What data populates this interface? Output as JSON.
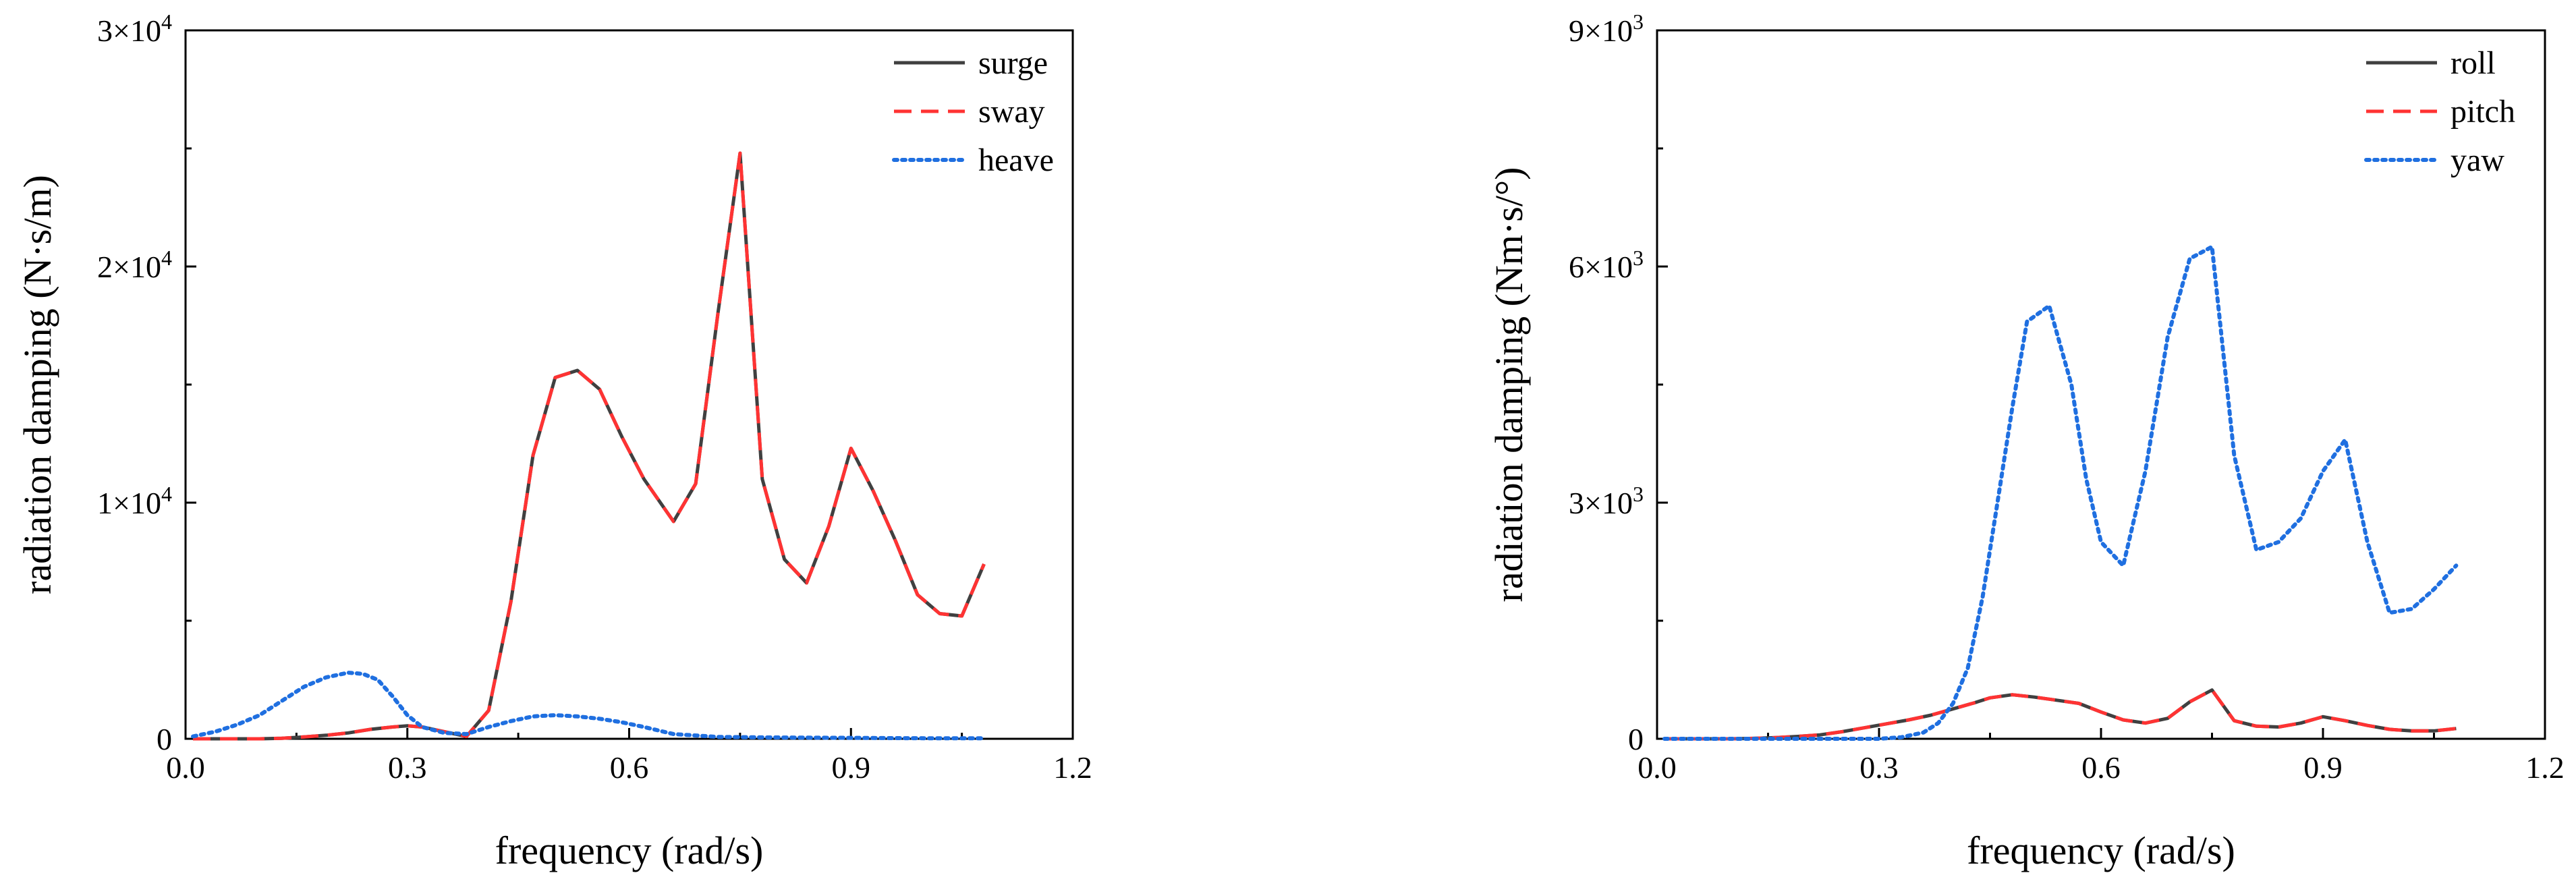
{
  "figure": "radiation damping vs frequency",
  "chart_data": [
    {
      "type": "line",
      "title": "",
      "xlabel": "frequency (rad/s)",
      "ylabel": "radiation damping (N·s/m)",
      "xlim": [
        0,
        1.2
      ],
      "ylim": [
        0,
        30000
      ],
      "xticks": [
        0,
        0.3,
        0.6,
        0.9,
        1.2
      ],
      "xtick_labels": [
        "0.0",
        "0.3",
        "0.6",
        "0.9",
        "1.2"
      ],
      "yticks": [
        0,
        10000,
        20000,
        30000
      ],
      "ytick_labels": [
        {
          "base": "0",
          "exp": ""
        },
        {
          "base": "1×10",
          "exp": "4"
        },
        {
          "base": "2×10",
          "exp": "4"
        },
        {
          "base": "3×10",
          "exp": "4"
        }
      ],
      "legend_position": "top-right",
      "series": [
        {
          "name": "surge",
          "color": "#404040",
          "style": "solid",
          "x": [
            0.01,
            0.04,
            0.07,
            0.1,
            0.13,
            0.16,
            0.19,
            0.22,
            0.25,
            0.28,
            0.3,
            0.32,
            0.35,
            0.38,
            0.41,
            0.44,
            0.47,
            0.5,
            0.53,
            0.56,
            0.59,
            0.62,
            0.66,
            0.69,
            0.72,
            0.75,
            0.78,
            0.81,
            0.84,
            0.87,
            0.9,
            0.93,
            0.96,
            0.99,
            1.02,
            1.05,
            1.08
          ],
          "values": [
            0,
            0,
            0,
            0,
            20,
            80,
            150,
            250,
            400,
            500,
            550,
            500,
            300,
            100,
            1200,
            5800,
            12000,
            15300,
            15600,
            14800,
            12800,
            11000,
            9200,
            10800,
            18000,
            24800,
            11000,
            7600,
            6600,
            9000,
            12300,
            10500,
            8400,
            6100,
            5300,
            5200,
            7400
          ]
        },
        {
          "name": "sway",
          "color": "#ff3333",
          "style": "dashed",
          "x": [
            0.01,
            0.04,
            0.07,
            0.1,
            0.13,
            0.16,
            0.19,
            0.22,
            0.25,
            0.28,
            0.3,
            0.32,
            0.35,
            0.38,
            0.41,
            0.44,
            0.47,
            0.5,
            0.53,
            0.56,
            0.59,
            0.62,
            0.66,
            0.69,
            0.72,
            0.75,
            0.78,
            0.81,
            0.84,
            0.87,
            0.9,
            0.93,
            0.96,
            0.99,
            1.02,
            1.05,
            1.08
          ],
          "values": [
            0,
            0,
            0,
            0,
            20,
            80,
            150,
            250,
            400,
            500,
            550,
            500,
            300,
            100,
            1200,
            5800,
            12000,
            15300,
            15600,
            14800,
            12800,
            11000,
            9200,
            10800,
            18000,
            24800,
            11000,
            7600,
            6600,
            9000,
            12300,
            10500,
            8400,
            6100,
            5300,
            5200,
            7400
          ]
        },
        {
          "name": "heave",
          "color": "#1f6fe0",
          "style": "dotted",
          "x": [
            0.01,
            0.04,
            0.07,
            0.1,
            0.13,
            0.16,
            0.19,
            0.22,
            0.24,
            0.26,
            0.28,
            0.3,
            0.32,
            0.35,
            0.38,
            0.41,
            0.44,
            0.47,
            0.5,
            0.53,
            0.56,
            0.59,
            0.62,
            0.66,
            0.72,
            0.78,
            0.84,
            0.9,
            0.96,
            1.02,
            1.08
          ],
          "values": [
            100,
            300,
            600,
            1000,
            1600,
            2200,
            2600,
            2800,
            2750,
            2500,
            1800,
            1000,
            500,
            250,
            200,
            500,
            750,
            950,
            1000,
            950,
            850,
            700,
            500,
            200,
            80,
            60,
            50,
            40,
            30,
            20,
            20
          ]
        }
      ]
    },
    {
      "type": "line",
      "title": "",
      "xlabel": "frequency (rad/s)",
      "ylabel": "radiation damping (Nm·s/°)",
      "xlim": [
        0,
        1.2
      ],
      "ylim": [
        0,
        9000
      ],
      "xticks": [
        0,
        0.3,
        0.6,
        0.9,
        1.2
      ],
      "xtick_labels": [
        "0.0",
        "0.3",
        "0.6",
        "0.9",
        "1.2"
      ],
      "yticks": [
        0,
        3000,
        6000,
        9000
      ],
      "ytick_labels": [
        {
          "base": "0",
          "exp": ""
        },
        {
          "base": "3×10",
          "exp": "3"
        },
        {
          "base": "6×10",
          "exp": "3"
        },
        {
          "base": "9×10",
          "exp": "3"
        }
      ],
      "legend_position": "top-right",
      "series": [
        {
          "name": "roll",
          "color": "#404040",
          "style": "solid",
          "x": [
            0.01,
            0.04,
            0.07,
            0.1,
            0.13,
            0.16,
            0.19,
            0.22,
            0.25,
            0.28,
            0.31,
            0.34,
            0.37,
            0.4,
            0.43,
            0.45,
            0.48,
            0.51,
            0.54,
            0.57,
            0.6,
            0.63,
            0.66,
            0.69,
            0.72,
            0.75,
            0.78,
            0.81,
            0.84,
            0.87,
            0.9,
            0.93,
            0.96,
            0.99,
            1.02,
            1.05,
            1.08
          ],
          "values": [
            0,
            0,
            0,
            0,
            5,
            15,
            30,
            50,
            90,
            140,
            190,
            240,
            300,
            380,
            460,
            520,
            560,
            530,
            490,
            450,
            340,
            240,
            200,
            260,
            470,
            620,
            230,
            160,
            150,
            200,
            280,
            230,
            170,
            120,
            100,
            100,
            130
          ]
        },
        {
          "name": "pitch",
          "color": "#ff3333",
          "style": "dashed",
          "x": [
            0.01,
            0.04,
            0.07,
            0.1,
            0.13,
            0.16,
            0.19,
            0.22,
            0.25,
            0.28,
            0.31,
            0.34,
            0.37,
            0.4,
            0.43,
            0.45,
            0.48,
            0.51,
            0.54,
            0.57,
            0.6,
            0.63,
            0.66,
            0.69,
            0.72,
            0.75,
            0.78,
            0.81,
            0.84,
            0.87,
            0.9,
            0.93,
            0.96,
            0.99,
            1.02,
            1.05,
            1.08
          ],
          "values": [
            0,
            0,
            0,
            0,
            5,
            15,
            30,
            50,
            90,
            140,
            190,
            240,
            300,
            380,
            460,
            520,
            560,
            530,
            490,
            450,
            340,
            240,
            200,
            260,
            470,
            620,
            230,
            160,
            150,
            200,
            280,
            230,
            170,
            120,
            100,
            100,
            130
          ]
        },
        {
          "name": "yaw",
          "color": "#1f6fe0",
          "style": "dotted",
          "x": [
            0.01,
            0.05,
            0.1,
            0.15,
            0.2,
            0.25,
            0.3,
            0.33,
            0.36,
            0.38,
            0.4,
            0.42,
            0.44,
            0.46,
            0.48,
            0.5,
            0.53,
            0.56,
            0.58,
            0.6,
            0.63,
            0.66,
            0.69,
            0.72,
            0.75,
            0.78,
            0.81,
            0.84,
            0.87,
            0.9,
            0.93,
            0.96,
            0.99,
            1.02,
            1.05,
            1.08
          ],
          "values": [
            0,
            0,
            0,
            0,
            0,
            0,
            0,
            20,
            80,
            200,
            450,
            900,
            1800,
            3000,
            4200,
            5300,
            5500,
            4500,
            3300,
            2500,
            2200,
            3400,
            5100,
            6100,
            6250,
            3600,
            2400,
            2500,
            2800,
            3400,
            3800,
            2500,
            1600,
            1650,
            1900,
            2200
          ]
        }
      ]
    }
  ]
}
